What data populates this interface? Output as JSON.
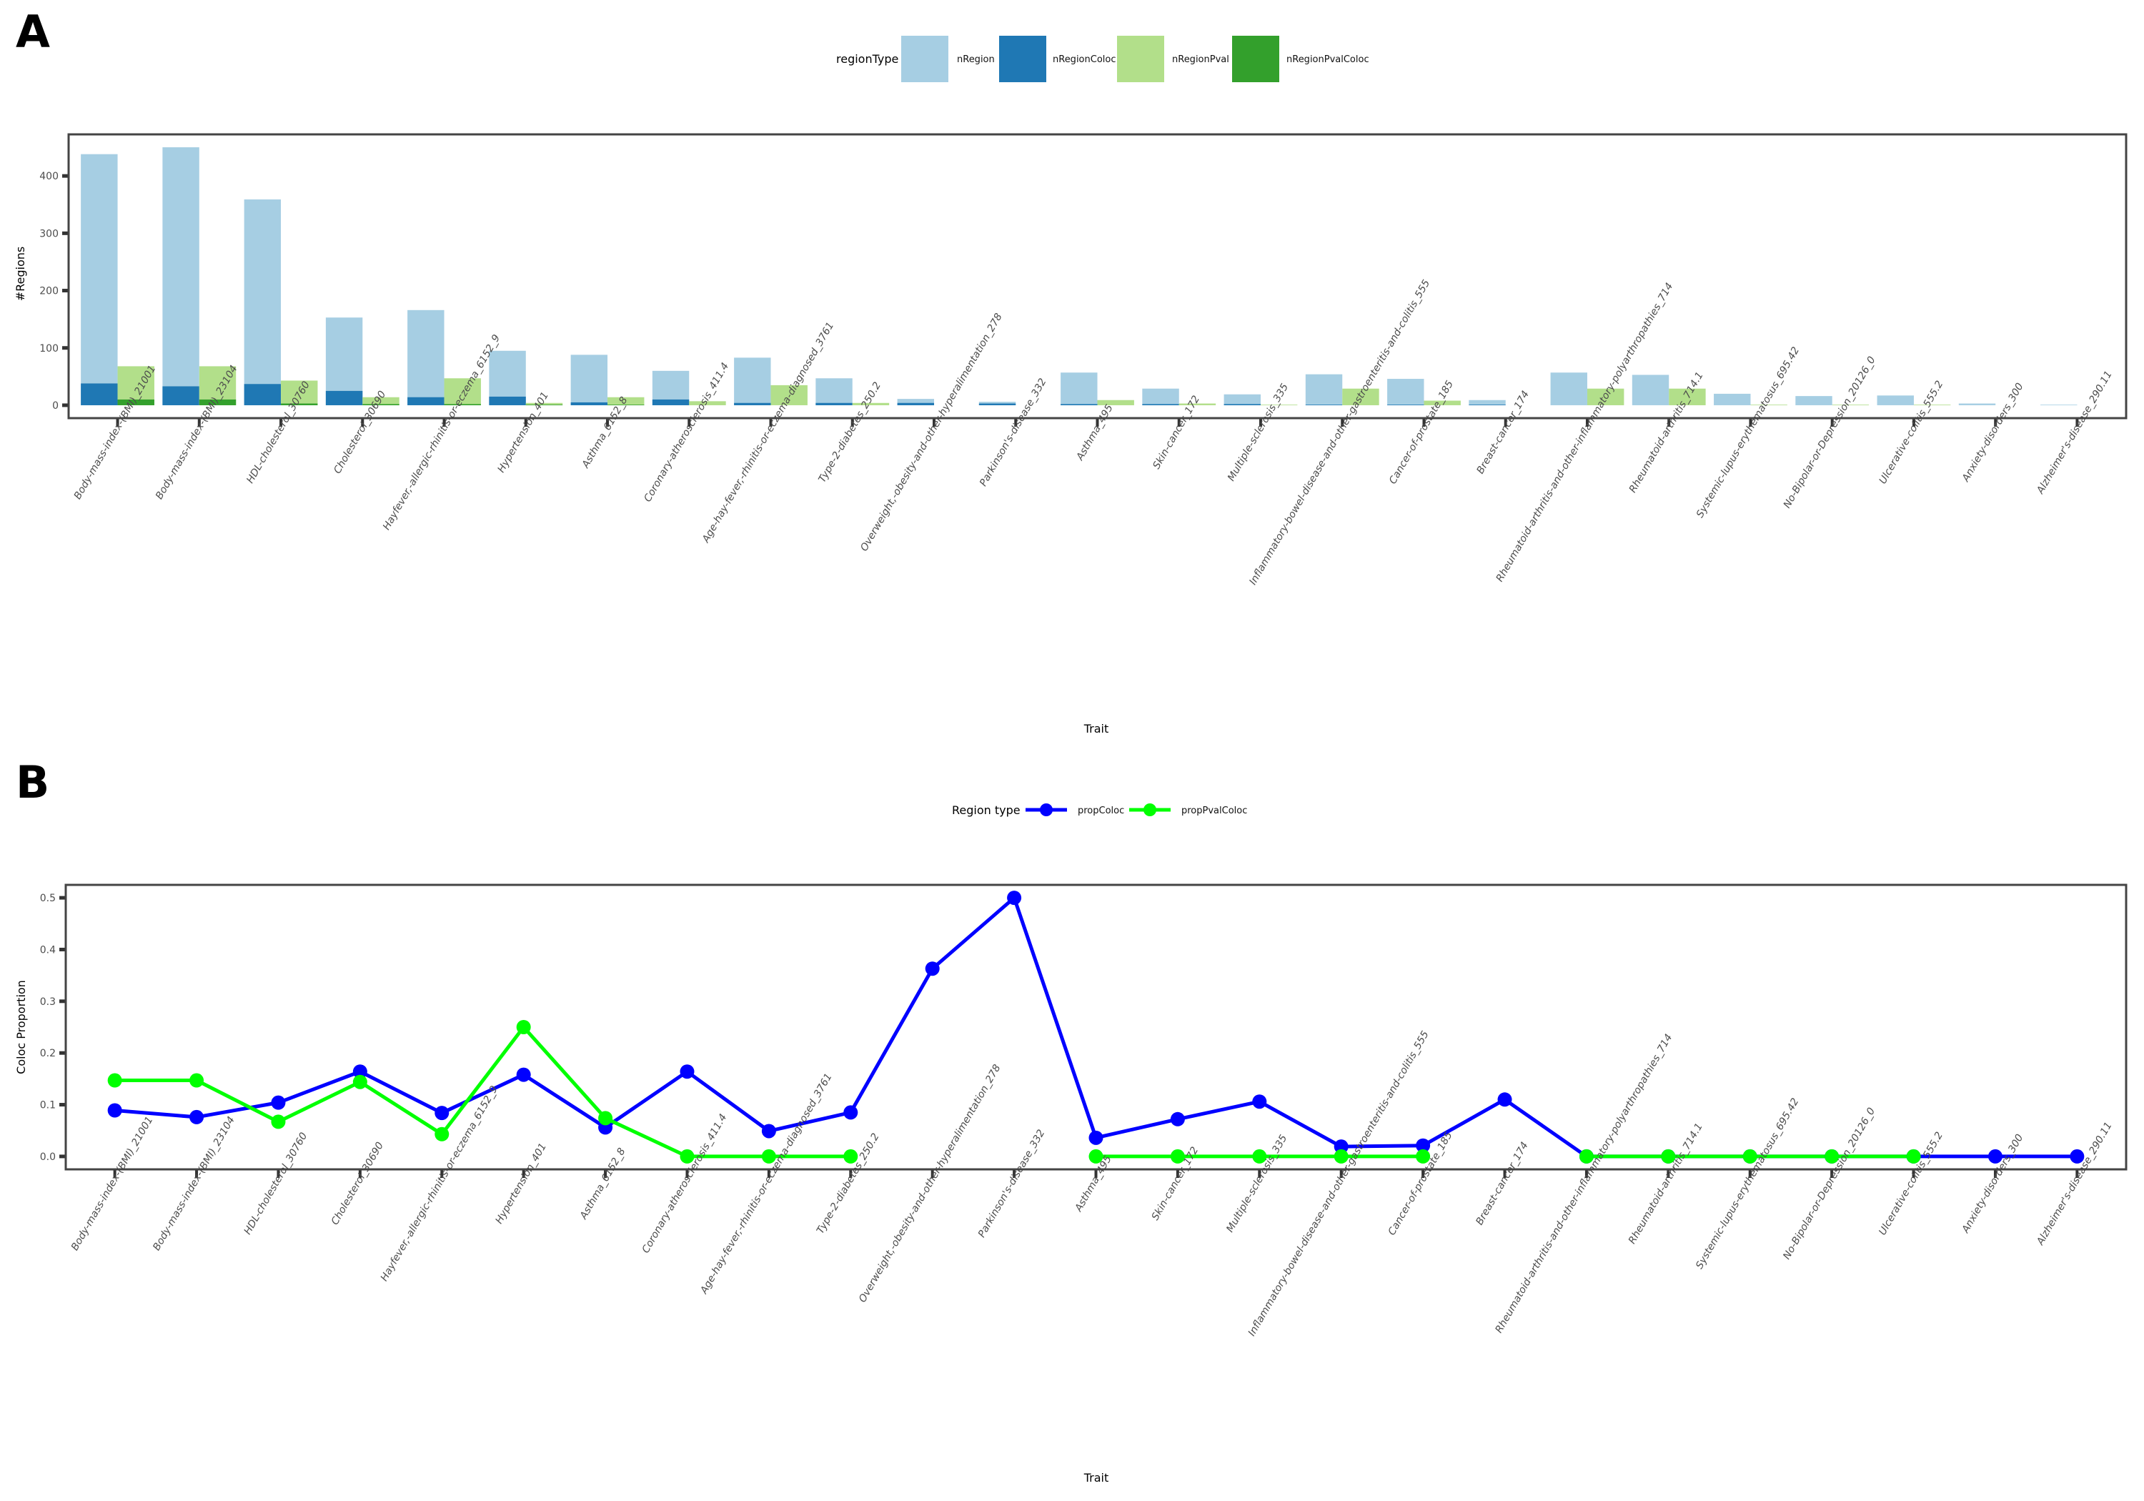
{
  "chart_data": [
    {
      "panel": "A",
      "type": "bar",
      "title": "",
      "xlabel": "Trait",
      "ylabel": "#Regions",
      "ylim": [
        -22.5,
        472.5
      ],
      "yticks": [
        0,
        100,
        200,
        300,
        400
      ],
      "legend": {
        "title": "regionType",
        "placement": "top"
      },
      "categories": [
        "Body-mass-index-(BMI)_21001",
        "Body-mass-index-(BMI)_23104",
        "HDL-cholesterol_30760",
        "Cholesterol_30690",
        "Hayfever,-allergic-rhinitis-or-eczema_6152_9",
        "Hypertension_401",
        "Asthma_6152_8",
        "Coronary-atherosclerosis_411.4",
        "Age-hay-fever,-rhinitis-or-eczema-diagnosed_3761",
        "Type-2-diabetes_250.2",
        "Overweight,-obesity-and-other-hyperalimentation_278",
        "Parkinson's-disease_332",
        "Asthma_495",
        "Skin-cancer_172",
        "Multiple-sclerosis_335",
        "Inflammatory-bowel-disease-and-other-gastroenteritis-and-colitis_555",
        "Cancer-of-prostate_185",
        "Breast-cancer_174",
        "Rheumatoid-arthritis-and-other-inflammatory-polyarthropathies_714",
        "Rheumatoid-arthritis_714.1",
        "Systemic-lupus-erythematosus_695.42",
        "No-Bipolar-or-Depression_20126_0",
        "Ulcerative-colitis_555.2",
        "Anxiety-disorders_300",
        "Alzheimer's-disease_290.11"
      ],
      "series": [
        {
          "name": "nRegion",
          "color": "#a6cee3",
          "values": [
            438,
            450,
            359,
            153,
            166,
            95,
            88,
            60,
            83,
            47,
            11,
            6,
            57,
            29,
            19,
            54,
            46,
            9,
            57,
            53,
            20,
            16,
            17,
            3,
            1
          ]
        },
        {
          "name": "nRegionColoc",
          "color": "#1f78b4",
          "values": [
            38,
            33,
            37,
            25,
            14,
            15,
            5,
            10,
            4,
            4,
            4,
            3,
            2,
            2,
            2,
            1,
            1,
            1,
            0,
            0,
            0,
            0,
            0,
            0,
            0
          ]
        },
        {
          "name": "nRegionPval",
          "color": "#b2df8a",
          "values": [
            68,
            68,
            43,
            14,
            47,
            4,
            14,
            7,
            35,
            4,
            0,
            0,
            9,
            3,
            1,
            29,
            8,
            0,
            29,
            29,
            1,
            1,
            1,
            0,
            0
          ]
        },
        {
          "name": "nRegionPvalColoc",
          "color": "#33a02c",
          "values": [
            10,
            10,
            3,
            2,
            2,
            1,
            1,
            0,
            0,
            0,
            0,
            0,
            0,
            0,
            0,
            0,
            0,
            0,
            0,
            0,
            0,
            0,
            0,
            0,
            0
          ]
        }
      ]
    },
    {
      "panel": "B",
      "type": "line",
      "title": "",
      "xlabel": "Trait",
      "ylabel": "Coloc Proportion",
      "ylim": [
        -0.025,
        0.525
      ],
      "yticks": [
        "0.0",
        "0.1",
        "0.2",
        "0.3",
        "0.4",
        "0.5"
      ],
      "legend": {
        "title": "Region type",
        "placement": "top"
      },
      "series": [
        {
          "name": "propColoc",
          "color": "#0000ff",
          "values": [
            0.089,
            0.076,
            0.104,
            0.164,
            0.084,
            0.158,
            0.056,
            0.164,
            0.049,
            0.085,
            0.363,
            0.5,
            0.036,
            0.072,
            0.106,
            0.019,
            0.021,
            0.11,
            0,
            0,
            0,
            0,
            0,
            0,
            0
          ]
        },
        {
          "name": "propPvalColoc",
          "color": "#00ff00",
          "values": [
            0.147,
            0.147,
            0.067,
            0.144,
            0.043,
            0.25,
            0.074,
            0,
            0,
            0,
            null,
            null,
            0,
            0,
            0,
            0,
            0,
            null,
            0,
            0,
            0,
            0,
            0,
            null,
            null
          ]
        }
      ]
    }
  ]
}
